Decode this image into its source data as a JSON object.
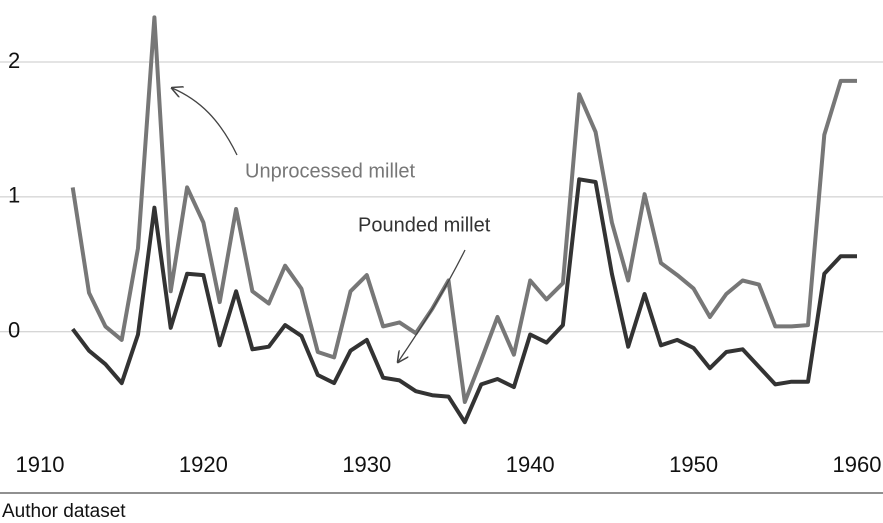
{
  "chart_data": {
    "type": "line",
    "x": [
      1912,
      1913,
      1914,
      1915,
      1916,
      1917,
      1918,
      1919,
      1920,
      1921,
      1922,
      1923,
      1924,
      1925,
      1926,
      1927,
      1928,
      1929,
      1930,
      1931,
      1932,
      1933,
      1934,
      1935,
      1936,
      1937,
      1938,
      1939,
      1940,
      1941,
      1942,
      1943,
      1944,
      1945,
      1946,
      1947,
      1948,
      1949,
      1950,
      1951,
      1952,
      1953,
      1954,
      1955,
      1956,
      1957,
      1958,
      1959,
      1960
    ],
    "series": [
      {
        "name": "Unprocessed millet",
        "color": "#777777",
        "values": [
          1.07,
          0.29,
          0.04,
          -0.06,
          0.62,
          2.33,
          0.3,
          1.07,
          0.81,
          0.22,
          0.91,
          0.3,
          0.21,
          0.49,
          0.32,
          -0.15,
          -0.19,
          0.3,
          0.42,
          0.04,
          0.07,
          -0.01,
          0.17,
          0.38,
          -0.52,
          -0.21,
          0.11,
          -0.17,
          0.38,
          0.24,
          0.36,
          1.76,
          1.48,
          0.81,
          0.38,
          1.02,
          0.51,
          0.42,
          0.32,
          0.11,
          0.28,
          0.38,
          0.35,
          0.04,
          0.04,
          0.05,
          1.46,
          1.86,
          1.86
        ]
      },
      {
        "name": "Pounded millet",
        "color": "#333333",
        "values": [
          0.02,
          -0.14,
          -0.24,
          -0.38,
          -0.02,
          0.92,
          0.03,
          0.43,
          0.42,
          -0.1,
          0.3,
          -0.13,
          -0.11,
          0.05,
          -0.03,
          -0.32,
          -0.38,
          -0.14,
          -0.06,
          -0.34,
          -0.36,
          -0.44,
          -0.47,
          -0.48,
          -0.67,
          -0.39,
          -0.35,
          -0.41,
          -0.02,
          -0.08,
          0.05,
          1.13,
          1.11,
          0.43,
          -0.11,
          0.28,
          -0.1,
          -0.06,
          -0.12,
          -0.27,
          -0.15,
          -0.13,
          -0.26,
          -0.39,
          -0.37,
          -0.37,
          0.43,
          0.56,
          0.56
        ]
      }
    ],
    "xlim": [
      1910,
      1960
    ],
    "xticks": [
      1910,
      1920,
      1930,
      1940,
      1950,
      1960
    ],
    "ylim": [
      -0.75,
      2.4
    ],
    "yticks": [
      0,
      1,
      2
    ],
    "grid": true,
    "source": "Author dataset"
  }
}
